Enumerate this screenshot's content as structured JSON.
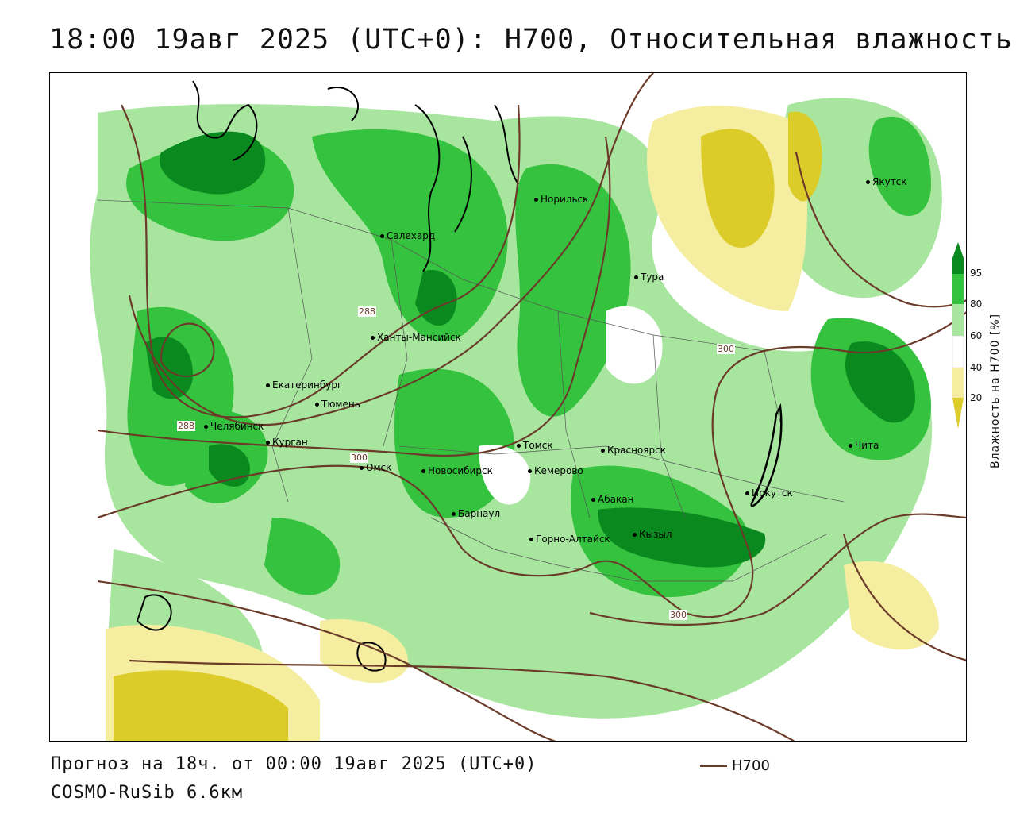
{
  "header": {
    "title": "18:00 19авг 2025 (UTC+0): H700, Относительная влажность"
  },
  "footer": {
    "forecast": "Прогноз на 18ч. от 00:00 19авг 2025 (UTC+0)",
    "model": "COSMO-RuSib 6.6км",
    "legend_label": "H700"
  },
  "colorbar": {
    "title": "Влажность на H700 [%]",
    "ticks": [
      "95",
      "80",
      "60",
      "40",
      "20"
    ],
    "colors": [
      "#0a8a1e",
      "#35c23e",
      "#a8e6a0",
      "#ffffff",
      "#f5eea0",
      "#dccc2a"
    ]
  },
  "cities": [
    {
      "name": "Норильск"
    },
    {
      "name": "Якутск"
    },
    {
      "name": "Салехард"
    },
    {
      "name": "Тура"
    },
    {
      "name": "Ханты-Мансийск"
    },
    {
      "name": "Екатеринбург"
    },
    {
      "name": "Тюмень"
    },
    {
      "name": "Челябинск"
    },
    {
      "name": "Курган"
    },
    {
      "name": "Омск"
    },
    {
      "name": "Томск"
    },
    {
      "name": "Красноярск"
    },
    {
      "name": "Новосибирск"
    },
    {
      "name": "Кемерово"
    },
    {
      "name": "Абакан"
    },
    {
      "name": "Барнаул"
    },
    {
      "name": "Иркутск"
    },
    {
      "name": "Чита"
    },
    {
      "name": "Горно-Алтайск"
    },
    {
      "name": "Кызыл"
    }
  ],
  "isolines": [
    "288",
    "300",
    "288",
    "300",
    "300"
  ],
  "colors": {
    "contour": "#6b3b2a",
    "green_dark": "#0a8a1e",
    "green": "#35c23e",
    "green_light": "#a8e6a0",
    "yellow_light": "#f5eea0",
    "yellow": "#dccc2a"
  }
}
